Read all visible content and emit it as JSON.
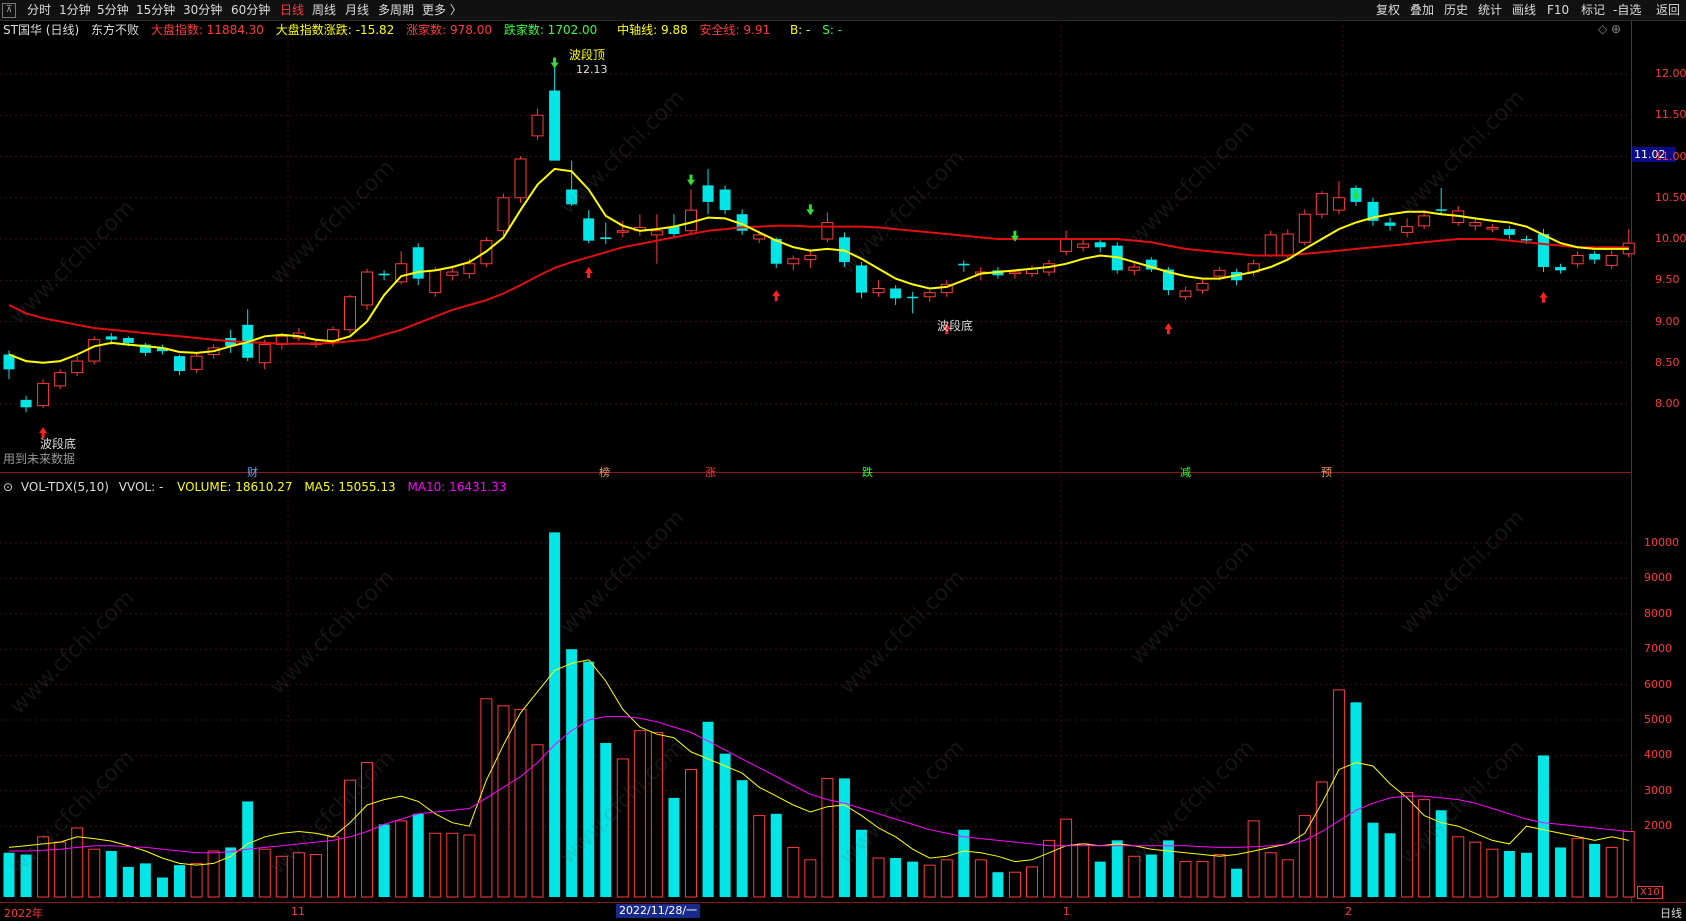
{
  "toolbar": {
    "periods": [
      "分时",
      "1分钟",
      "5分钟",
      "15分钟",
      "30分钟",
      "60分钟",
      "日线",
      "周线",
      "月线",
      "多周期",
      "更多 〉"
    ],
    "active_period": "日线",
    "right_buttons": [
      "复权",
      "叠加",
      "历史",
      "统计",
      "画线",
      "F10",
      "标记",
      "-自选",
      "返回"
    ]
  },
  "info": {
    "stock": "ST国华 (日线)",
    "indicator": "东方不败",
    "market_index": "大盘指数: 11884.30",
    "market_change": "大盘指数涨跌: -15.82",
    "up_count": "涨家数: 978.00",
    "down_count": "跌家数: 1702.00",
    "mid_line": "中轴线: 9.88",
    "safe_line": "安全线: 9.91",
    "b_signal": "B: -",
    "s_signal": "S: -"
  },
  "vol_info": {
    "name": "VOL-TDX(5,10)",
    "vvol": "VVOL: -",
    "volume": "VOLUME: 18610.27",
    "ma5": "MA5: 15055.13",
    "ma10": "MA10: 16431.33"
  },
  "annotations": {
    "top_label": "波段顶",
    "top_value": "12.13",
    "bottom_label": "波段底",
    "bottom_label_left": "波段底",
    "future_data": "用到未来数据",
    "current_price": "11.02"
  },
  "event_markers": [
    "财",
    "榜",
    "涨",
    "跌",
    "减",
    "预"
  ],
  "axes": {
    "price_ticks": [
      "12.00",
      "11.50",
      "11.00",
      "10.50",
      "10.00",
      "9.50",
      "9.00",
      "8.50",
      "8.00"
    ],
    "volume_ticks": [
      "10000",
      "9000",
      "8000",
      "7000",
      "6000",
      "5000",
      "4000",
      "3000",
      "2000"
    ],
    "volume_unit": "X10"
  },
  "bottom_bar": {
    "dates": [
      "2022年",
      "11",
      "1",
      "2"
    ],
    "selected_date": "2022/11/28/一",
    "view_mode": "日线"
  },
  "watermark": "www.cfchi.com",
  "colors": {
    "up": "#ff3b3b",
    "down": "#00e5e5",
    "ma_short": "#ffff00",
    "ma_long": "#e01010",
    "ma10_vol": "#ff00ff",
    "accent_tag": "#0a0a8a"
  },
  "chart_data": {
    "type": "candlestick",
    "price_range": [
      7.5,
      12.3
    ],
    "volume_range": [
      0,
      10500
    ],
    "candles": [
      [
        8.6,
        8.42,
        8.65,
        8.3,
        1250,
        "d"
      ],
      [
        8.05,
        7.96,
        8.1,
        7.9,
        1200,
        "d"
      ],
      [
        7.98,
        8.25,
        8.3,
        7.95,
        1700,
        "u"
      ],
      [
        8.22,
        8.38,
        8.42,
        8.18,
        1550,
        "u"
      ],
      [
        8.38,
        8.52,
        8.58,
        8.34,
        1950,
        "u"
      ],
      [
        8.52,
        8.78,
        8.82,
        8.48,
        1350,
        "u"
      ],
      [
        8.82,
        8.78,
        8.86,
        8.72,
        1300,
        "d"
      ],
      [
        8.8,
        8.74,
        8.82,
        8.7,
        850,
        "d"
      ],
      [
        8.72,
        8.62,
        8.74,
        8.58,
        950,
        "d"
      ],
      [
        8.68,
        8.64,
        8.72,
        8.6,
        550,
        "d"
      ],
      [
        8.58,
        8.4,
        8.6,
        8.35,
        900,
        "d"
      ],
      [
        8.42,
        8.58,
        8.62,
        8.38,
        950,
        "u"
      ],
      [
        8.6,
        8.68,
        8.72,
        8.55,
        1300,
        "u"
      ],
      [
        8.7,
        8.8,
        8.9,
        8.62,
        1400,
        "d"
      ],
      [
        8.96,
        8.56,
        9.15,
        8.52,
        2700,
        "d"
      ],
      [
        8.5,
        8.72,
        8.78,
        8.42,
        1350,
        "u"
      ],
      [
        8.72,
        8.82,
        8.86,
        8.66,
        1150,
        "u"
      ],
      [
        8.8,
        8.86,
        8.92,
        8.76,
        1250,
        "u"
      ],
      [
        8.74,
        8.72,
        8.78,
        8.68,
        1200,
        "u"
      ],
      [
        8.74,
        8.9,
        8.94,
        8.7,
        1700,
        "u"
      ],
      [
        8.9,
        9.3,
        9.32,
        8.86,
        3300,
        "u"
      ],
      [
        9.2,
        9.6,
        9.64,
        9.14,
        3800,
        "u"
      ],
      [
        9.58,
        9.56,
        9.62,
        9.5,
        2050,
        "d"
      ],
      [
        9.48,
        9.7,
        9.85,
        9.45,
        2150,
        "u"
      ],
      [
        9.9,
        9.52,
        9.95,
        9.44,
        2350,
        "d"
      ],
      [
        9.35,
        9.62,
        9.66,
        9.3,
        1800,
        "u"
      ],
      [
        9.56,
        9.6,
        9.66,
        9.5,
        1800,
        "u"
      ],
      [
        9.58,
        9.7,
        9.76,
        9.52,
        1750,
        "u"
      ],
      [
        9.7,
        9.98,
        10.02,
        9.66,
        5600,
        "u"
      ],
      [
        10.1,
        10.5,
        10.55,
        10.04,
        5400,
        "u"
      ],
      [
        10.5,
        10.97,
        11.0,
        10.44,
        5300,
        "u"
      ],
      [
        11.25,
        11.5,
        11.58,
        11.2,
        4300,
        "u"
      ],
      [
        11.8,
        10.95,
        12.13,
        10.95,
        10300,
        "d"
      ],
      [
        10.6,
        10.42,
        10.95,
        10.4,
        7000,
        "d"
      ],
      [
        10.25,
        9.98,
        10.35,
        9.95,
        6650,
        "d"
      ],
      [
        10.0,
        10.02,
        10.2,
        9.94,
        4350,
        "d"
      ],
      [
        10.1,
        10.1,
        10.22,
        10.02,
        3900,
        "u"
      ],
      [
        10.1,
        10.14,
        10.3,
        10.04,
        4700,
        "u"
      ],
      [
        10.1,
        10.05,
        10.3,
        9.7,
        4650,
        "u"
      ],
      [
        10.06,
        10.15,
        10.3,
        10.02,
        2800,
        "d"
      ],
      [
        10.35,
        10.1,
        10.6,
        10.06,
        3600,
        "u"
      ],
      [
        10.65,
        10.45,
        10.85,
        10.3,
        4950,
        "d"
      ],
      [
        10.6,
        10.35,
        10.65,
        10.3,
        4050,
        "d"
      ],
      [
        10.3,
        10.1,
        10.36,
        10.05,
        3300,
        "d"
      ],
      [
        10.05,
        10.0,
        10.1,
        9.95,
        2300,
        "u"
      ],
      [
        10.0,
        9.7,
        10.02,
        9.65,
        2350,
        "d"
      ],
      [
        9.7,
        9.76,
        9.8,
        9.62,
        1400,
        "u"
      ],
      [
        9.75,
        9.8,
        9.86,
        9.65,
        1050,
        "u"
      ],
      [
        10.0,
        10.2,
        10.32,
        9.96,
        3350,
        "u"
      ],
      [
        10.02,
        9.72,
        10.08,
        9.66,
        3350,
        "d"
      ],
      [
        9.68,
        9.35,
        9.72,
        9.28,
        1900,
        "d"
      ],
      [
        9.35,
        9.4,
        9.5,
        9.3,
        1100,
        "u"
      ],
      [
        9.4,
        9.28,
        9.44,
        9.2,
        1100,
        "d"
      ],
      [
        9.3,
        9.3,
        9.36,
        9.1,
        1000,
        "d"
      ],
      [
        9.3,
        9.35,
        9.38,
        9.24,
        900,
        "u"
      ],
      [
        9.35,
        9.45,
        9.5,
        9.3,
        1050,
        "u"
      ],
      [
        9.7,
        9.68,
        9.74,
        9.6,
        1900,
        "d"
      ],
      [
        9.58,
        9.6,
        9.66,
        9.5,
        1050,
        "u"
      ],
      [
        9.62,
        9.56,
        9.66,
        9.52,
        700,
        "d"
      ],
      [
        9.58,
        9.6,
        9.62,
        9.52,
        700,
        "u"
      ],
      [
        9.58,
        9.64,
        9.68,
        9.54,
        850,
        "u"
      ],
      [
        9.6,
        9.7,
        9.75,
        9.55,
        1600,
        "u"
      ],
      [
        9.85,
        10.0,
        10.1,
        9.8,
        2200,
        "u"
      ],
      [
        9.9,
        9.94,
        10.0,
        9.85,
        1500,
        "u"
      ],
      [
        9.96,
        9.9,
        10.0,
        9.84,
        1000,
        "d"
      ],
      [
        9.92,
        9.62,
        9.96,
        9.58,
        1600,
        "d"
      ],
      [
        9.62,
        9.66,
        9.72,
        9.56,
        1150,
        "u"
      ],
      [
        9.75,
        9.63,
        9.78,
        9.6,
        1200,
        "d"
      ],
      [
        9.63,
        9.38,
        9.66,
        9.32,
        1600,
        "d"
      ],
      [
        9.3,
        9.37,
        9.42,
        9.26,
        1000,
        "u"
      ],
      [
        9.38,
        9.46,
        9.5,
        9.34,
        1000,
        "u"
      ],
      [
        9.55,
        9.62,
        9.66,
        9.5,
        1200,
        "u"
      ],
      [
        9.6,
        9.5,
        9.64,
        9.44,
        800,
        "d"
      ],
      [
        9.6,
        9.7,
        9.75,
        9.55,
        2150,
        "u"
      ],
      [
        9.8,
        10.05,
        10.1,
        9.78,
        1250,
        "u"
      ],
      [
        9.8,
        10.06,
        10.12,
        9.75,
        1050,
        "u"
      ],
      [
        9.96,
        10.3,
        10.36,
        9.92,
        2300,
        "u"
      ],
      [
        10.3,
        10.55,
        10.58,
        10.25,
        3250,
        "u"
      ],
      [
        10.5,
        10.35,
        10.7,
        10.3,
        5850,
        "u"
      ],
      [
        10.62,
        10.45,
        10.65,
        10.4,
        5500,
        "d"
      ],
      [
        10.45,
        10.22,
        10.5,
        10.16,
        2100,
        "d"
      ],
      [
        10.2,
        10.16,
        10.26,
        10.1,
        1800,
        "d"
      ],
      [
        10.08,
        10.15,
        10.25,
        10.02,
        2950,
        "u"
      ],
      [
        10.16,
        10.28,
        10.35,
        10.12,
        2750,
        "u"
      ],
      [
        10.36,
        10.35,
        10.62,
        10.3,
        2450,
        "d"
      ],
      [
        10.2,
        10.34,
        10.4,
        10.16,
        1700,
        "u"
      ],
      [
        10.16,
        10.2,
        10.24,
        10.1,
        1550,
        "u"
      ],
      [
        10.12,
        10.14,
        10.18,
        10.08,
        1350,
        "u"
      ],
      [
        10.12,
        10.05,
        10.16,
        10.0,
        1300,
        "d"
      ],
      [
        10.0,
        9.99,
        10.04,
        9.94,
        1250,
        "d"
      ],
      [
        10.06,
        9.66,
        10.12,
        9.6,
        4000,
        "d"
      ],
      [
        9.66,
        9.62,
        9.7,
        9.58,
        1400,
        "d"
      ],
      [
        9.7,
        9.8,
        9.85,
        9.65,
        1650,
        "u"
      ],
      [
        9.82,
        9.75,
        9.85,
        9.7,
        1500,
        "d"
      ],
      [
        9.68,
        9.8,
        9.86,
        9.64,
        1400,
        "u"
      ],
      [
        9.82,
        9.95,
        10.12,
        9.78,
        1850,
        "u"
      ]
    ],
    "ma_short": [
      8.6,
      8.52,
      8.5,
      8.52,
      8.6,
      8.7,
      8.74,
      8.72,
      8.7,
      8.68,
      8.63,
      8.62,
      8.64,
      8.7,
      8.75,
      8.82,
      8.84,
      8.82,
      8.78,
      8.76,
      8.82,
      9.0,
      9.32,
      9.55,
      9.6,
      9.62,
      9.66,
      9.72,
      9.85,
      10.02,
      10.35,
      10.66,
      10.85,
      10.82,
      10.6,
      10.28,
      10.16,
      10.1,
      10.12,
      10.15,
      10.2,
      10.26,
      10.25,
      10.18,
      10.08,
      9.98,
      9.9,
      9.86,
      9.88,
      9.86,
      9.76,
      9.64,
      9.52,
      9.45,
      9.4,
      9.42,
      9.5,
      9.58,
      9.6,
      9.62,
      9.64,
      9.66,
      9.7,
      9.76,
      9.8,
      9.78,
      9.72,
      9.66,
      9.6,
      9.55,
      9.52,
      9.52,
      9.56,
      9.6,
      9.66,
      9.75,
      9.88,
      10.0,
      10.12,
      10.2,
      10.26,
      10.3,
      10.33,
      10.33,
      10.3,
      10.28,
      10.25,
      10.22,
      10.2,
      10.15,
      10.05,
      9.95,
      9.9,
      9.88,
      9.88,
      9.88
    ],
    "ma_long": [
      9.2,
      9.1,
      9.04,
      9.0,
      8.96,
      8.92,
      8.9,
      8.88,
      8.86,
      8.84,
      8.82,
      8.8,
      8.78,
      8.76,
      8.75,
      8.74,
      8.73,
      8.73,
      8.73,
      8.74,
      8.76,
      8.78,
      8.84,
      8.9,
      8.98,
      9.06,
      9.14,
      9.2,
      9.26,
      9.34,
      9.44,
      9.55,
      9.65,
      9.72,
      9.78,
      9.84,
      9.9,
      9.94,
      9.98,
      10.02,
      10.06,
      10.1,
      10.12,
      10.14,
      10.15,
      10.16,
      10.16,
      10.15,
      10.15,
      10.15,
      10.15,
      10.14,
      10.12,
      10.1,
      10.08,
      10.06,
      10.04,
      10.02,
      10.0,
      10.0,
      10.0,
      10.0,
      10.0,
      10.0,
      10.0,
      10.0,
      9.98,
      9.96,
      9.92,
      9.88,
      9.86,
      9.84,
      9.82,
      9.8,
      9.8,
      9.8,
      9.82,
      9.84,
      9.86,
      9.88,
      9.9,
      9.92,
      9.94,
      9.96,
      9.98,
      10.0,
      10.0,
      10.0,
      9.98,
      9.96,
      9.94,
      9.92,
      9.9,
      9.9,
      9.9,
      9.9
    ],
    "vol_ma5": [
      1400,
      1450,
      1500,
      1550,
      1700,
      1650,
      1580,
      1450,
      1300,
      1100,
      950,
      900,
      950,
      1150,
      1500,
      1700,
      1800,
      1850,
      1800,
      1700,
      2100,
      2600,
      2750,
      2850,
      2700,
      2350,
      2100,
      2000,
      3300,
      4300,
      5200,
      5800,
      6400,
      6600,
      6700,
      6100,
      5300,
      4800,
      4600,
      4500,
      4100,
      3900,
      3700,
      3500,
      3100,
      2850,
      2600,
      2400,
      2550,
      2600,
      2300,
      1950,
      1700,
      1350,
      1100,
      1150,
      1300,
      1250,
      1150,
      1000,
      1050,
      1250,
      1450,
      1500,
      1450,
      1500,
      1450,
      1350,
      1300,
      1250,
      1200,
      1150,
      1200,
      1300,
      1400,
      1500,
      1800,
      2650,
      3600,
      3800,
      3700,
      3200,
      2800,
      2300,
      2100,
      2000,
      1800,
      1600,
      1500,
      2000,
      1900,
      1800,
      1700,
      1600,
      1700,
      1600
    ],
    "vol_ma10": [
      1300,
      1300,
      1320,
      1350,
      1400,
      1450,
      1450,
      1420,
      1400,
      1350,
      1300,
      1250,
      1250,
      1280,
      1350,
      1400,
      1450,
      1500,
      1550,
      1600,
      1700,
      1850,
      2050,
      2200,
      2350,
      2400,
      2450,
      2500,
      2800,
      3100,
      3400,
      3800,
      4300,
      4700,
      5000,
      5100,
      5100,
      5050,
      4950,
      4800,
      4650,
      4400,
      4150,
      3900,
      3650,
      3400,
      3150,
      2900,
      2750,
      2650,
      2500,
      2350,
      2200,
      2050,
      1900,
      1800,
      1700,
      1650,
      1600,
      1550,
      1500,
      1450,
      1450,
      1450,
      1450,
      1450,
      1450,
      1450,
      1450,
      1450,
      1420,
      1400,
      1400,
      1420,
      1450,
      1500,
      1600,
      1850,
      2150,
      2450,
      2650,
      2800,
      2850,
      2850,
      2800,
      2750,
      2650,
      2500,
      2350,
      2200,
      2100,
      2050,
      2000,
      1950,
      1900,
      1850
    ]
  }
}
